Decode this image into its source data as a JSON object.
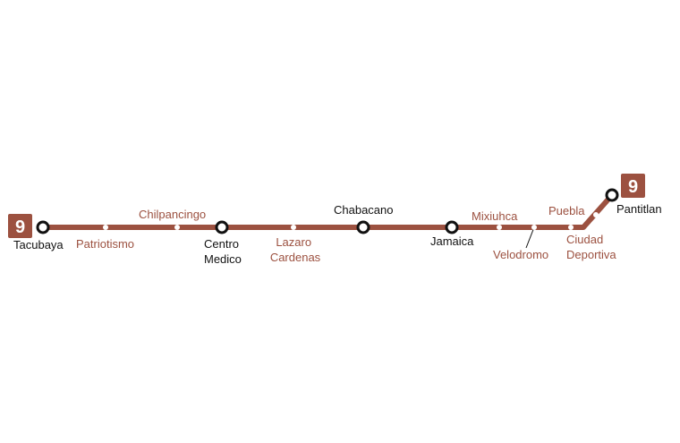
{
  "line": {
    "number": "9",
    "color": "#9c5140",
    "terminus_west": "Tacubaya",
    "terminus_east": "Pantitlan"
  },
  "stations": [
    {
      "id": "tacubaya",
      "lines": [
        "Tacubaya"
      ],
      "type": "interchange"
    },
    {
      "id": "patriotismo",
      "lines": [
        "Patriotismo"
      ],
      "type": "stop"
    },
    {
      "id": "chilpancingo",
      "lines": [
        "Chilpancingo"
      ],
      "type": "stop"
    },
    {
      "id": "centro-medico",
      "lines": [
        "Centro",
        "Medico"
      ],
      "type": "interchange"
    },
    {
      "id": "lazaro-cardenas",
      "lines": [
        "Lazaro",
        "Cardenas"
      ],
      "type": "stop"
    },
    {
      "id": "chabacano",
      "lines": [
        "Chabacano"
      ],
      "type": "interchange"
    },
    {
      "id": "jamaica",
      "lines": [
        "Jamaica"
      ],
      "type": "interchange"
    },
    {
      "id": "mixiuhca",
      "lines": [
        "Mixiuhca"
      ],
      "type": "stop"
    },
    {
      "id": "velodromo",
      "lines": [
        "Velodromo"
      ],
      "type": "stop"
    },
    {
      "id": "ciudad-deportiva",
      "lines": [
        "Ciudad",
        "Deportiva"
      ],
      "type": "stop"
    },
    {
      "id": "puebla",
      "lines": [
        "Puebla"
      ],
      "type": "stop"
    },
    {
      "id": "pantitlan",
      "lines": [
        "Pantitlan"
      ],
      "type": "interchange"
    }
  ]
}
